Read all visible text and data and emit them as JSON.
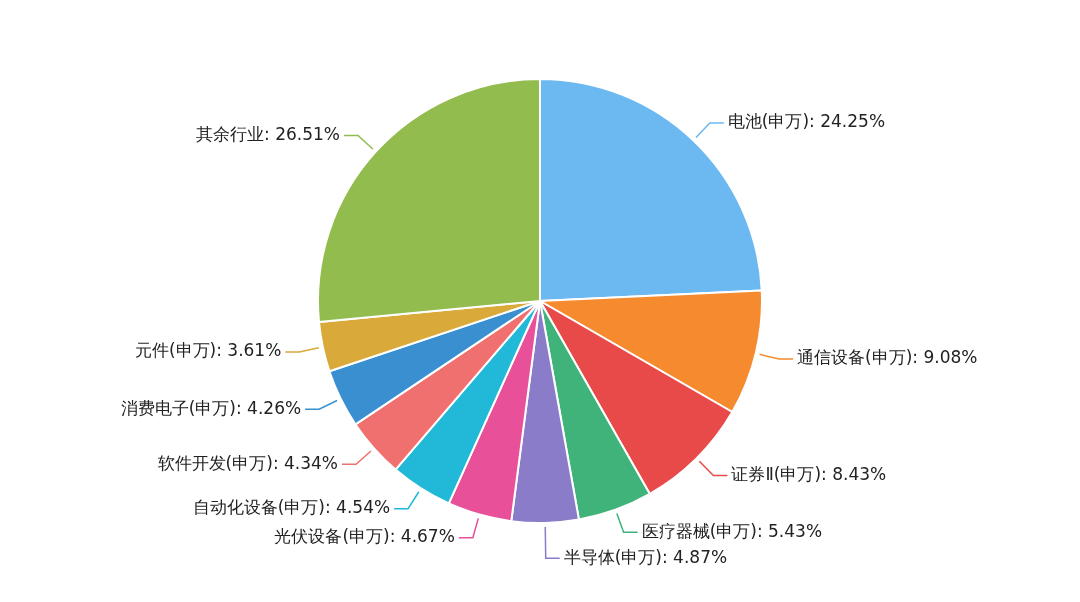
{
  "chart_data": {
    "type": "pie",
    "categories": [
      "电池(申万)",
      "通信设备(申万)",
      "证券Ⅱ(申万)",
      "医疗器械(申万)",
      "半导体(申万)",
      "光伏设备(申万)",
      "自动化设备(申万)",
      "软件开发(申万)",
      "消费电子(申万)",
      "元件(申万)",
      "其余行业"
    ],
    "values": [
      24.25,
      9.08,
      8.43,
      5.43,
      4.87,
      4.67,
      4.54,
      4.34,
      4.26,
      3.61,
      26.51
    ],
    "value_labels": [
      "24.25%",
      "9.08%",
      "8.43%",
      "5.43%",
      "4.87%",
      "4.67%",
      "4.54%",
      "4.34%",
      "4.26%",
      "3.61%",
      "26.51%"
    ],
    "colors": [
      "#6cb8f0",
      "#f58b2e",
      "#e84a4a",
      "#3fb37a",
      "#8a7cc8",
      "#e8509a",
      "#22b8d8",
      "#f07070",
      "#3a8fd0",
      "#d9a93a",
      "#92bc4e"
    ],
    "legend": false
  }
}
